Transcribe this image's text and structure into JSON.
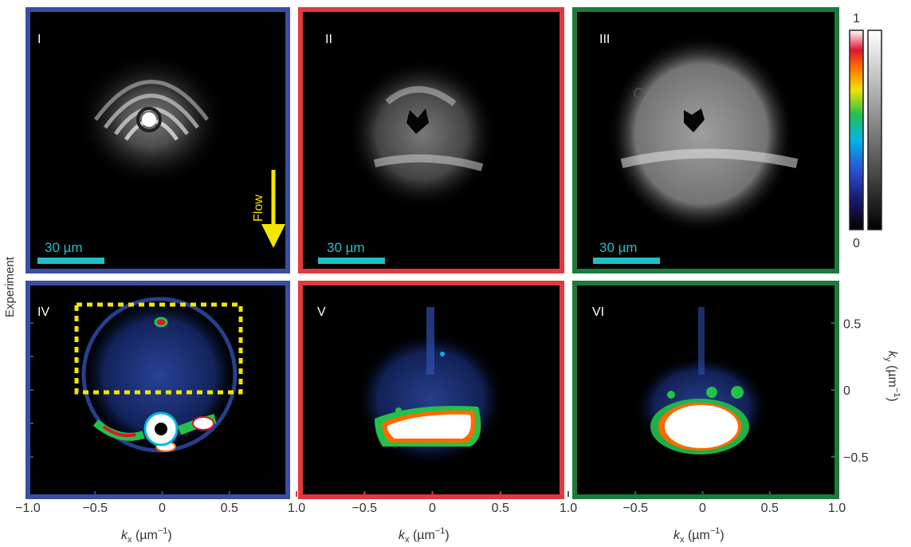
{
  "side_label": "Experiment",
  "top_row": {
    "panels": [
      {
        "label": "I",
        "frame_color": "#3a4fa0",
        "scale_bar": "30 µm"
      },
      {
        "label": "II",
        "frame_color": "#e03a3e",
        "scale_bar": "30 µm"
      },
      {
        "label": "III",
        "frame_color": "#1f7a3e",
        "scale_bar": "30 µm"
      }
    ],
    "flow_label": "Flow",
    "flow_color": "#f2e500"
  },
  "bottom_row": {
    "panels": [
      {
        "label": "IV",
        "frame_color": "#3a4fa0"
      },
      {
        "label": "V",
        "frame_color": "#e03a3e"
      },
      {
        "label": "VI",
        "frame_color": "#1f7a3e"
      }
    ]
  },
  "colorbar": {
    "max_label": "1",
    "min_label": "0"
  },
  "x_axis": {
    "label_main": "k",
    "label_sub": "x",
    "label_unit": " (µm",
    "label_exp": "−1",
    "label_close": ")",
    "ticks": [
      "−1.0",
      "−0.5",
      "0",
      "0.5",
      "1.0"
    ],
    "tick_values": [
      -1.0,
      -0.5,
      0,
      0.5,
      1.0
    ]
  },
  "y_axis": {
    "label_main": "k",
    "label_sub": "y",
    "label_unit": " (µm",
    "label_exp": "−1",
    "label_close": ")",
    "ticks": [
      "0.5",
      "0",
      "−0.5"
    ],
    "tick_values": [
      0.5,
      0,
      -0.5
    ],
    "range": [
      -0.8,
      0.8
    ]
  }
}
